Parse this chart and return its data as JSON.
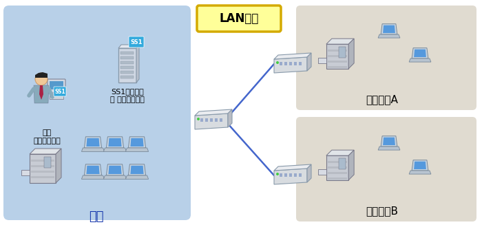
{
  "bg_color": "#ffffff",
  "honkan_bg": "#b8d0e8",
  "center_bg": "#e0dbd0",
  "lan_box_fill": "#ffff99",
  "lan_box_edge": "#d4aa00",
  "lan_label": "LAN構成",
  "honkan_label": "本館",
  "center_a_label": "センターA",
  "center_b_label": "センターB",
  "mgmt_client_label": "管理\nクライアント",
  "server_label": "SS1サーバー\n兼 収集サーバー",
  "line_color": "#4466cc",
  "line_width": 1.8
}
